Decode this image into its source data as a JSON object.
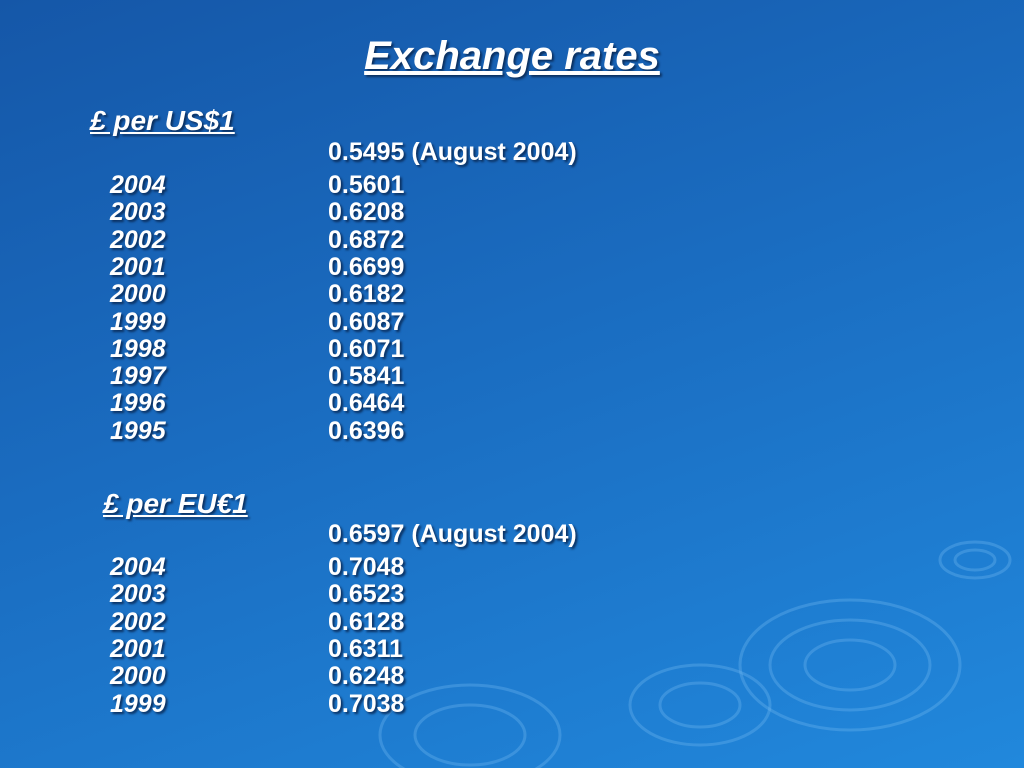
{
  "title": "Exchange rates",
  "sections": [
    {
      "heading": "£ per US$1",
      "current": "0.5495 (August 2004)",
      "rows": [
        [
          "2004",
          "0.5601"
        ],
        [
          "2003",
          "0.6208"
        ],
        [
          "2002",
          "0.6872"
        ],
        [
          "2001",
          "0.6699"
        ],
        [
          "2000",
          "0.6182"
        ],
        [
          "1999",
          "0.6087"
        ],
        [
          "1998",
          "0.6071"
        ],
        [
          "1997",
          "0.5841"
        ],
        [
          "1996",
          "0.6464"
        ],
        [
          "1995",
          "0.6396"
        ]
      ]
    },
    {
      "heading": "£ per EU€1",
      "current": "0.6597 (August 2004)",
      "rows": [
        [
          "2004",
          "0.7048"
        ],
        [
          "2003",
          "0.6523"
        ],
        [
          "2002",
          "0.6128"
        ],
        [
          "2001",
          "0.6311"
        ],
        [
          "2000",
          "0.6248"
        ],
        [
          "1999",
          "0.7038"
        ]
      ]
    }
  ]
}
